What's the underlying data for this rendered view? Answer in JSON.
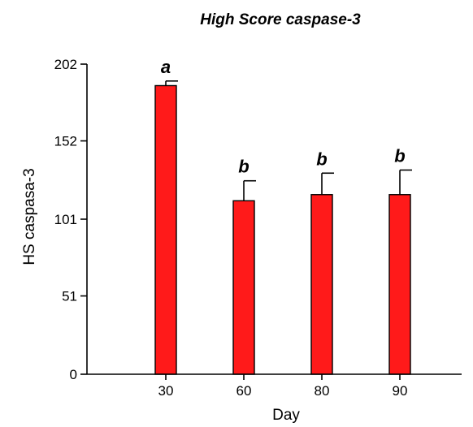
{
  "chart_data": {
    "type": "bar",
    "title": "High Score caspase-3",
    "xlabel": "Day",
    "ylabel": "HS caspasa-3",
    "categories": [
      "30",
      "60",
      "80",
      "90"
    ],
    "values": [
      188,
      113,
      117,
      117
    ],
    "error_upper": [
      191,
      126,
      131,
      133
    ],
    "group_labels": [
      "a",
      "b",
      "b",
      "b"
    ],
    "y_ticks": [
      "0",
      "51",
      "101",
      "152",
      "202"
    ],
    "ylim": [
      0,
      202
    ],
    "grid": false,
    "legend": "none",
    "bar_color": "#ff1a1a"
  }
}
